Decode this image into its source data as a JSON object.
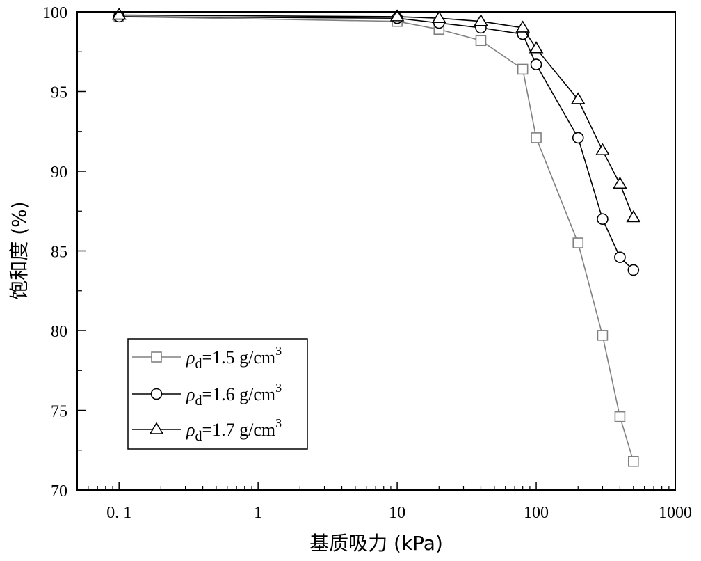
{
  "chart_data": {
    "type": "line",
    "xlabel": "基质吸力 (kPa)",
    "ylabel": "饱和度 (%)",
    "xscale": "log",
    "xlim": [
      0.05,
      1000
    ],
    "ylim": [
      70,
      100
    ],
    "x_ticks": [
      0.1,
      1,
      10,
      100,
      1000
    ],
    "x_tick_labels": [
      "0. 1",
      "1",
      "10",
      "100",
      "1000"
    ],
    "y_ticks": [
      70,
      75,
      80,
      85,
      90,
      95,
      100
    ],
    "y_tick_labels": [
      "70",
      "75",
      "80",
      "85",
      "90",
      "95",
      "100"
    ],
    "grid": false,
    "legend_position": "bottom-left",
    "series": [
      {
        "legend": {
          "symbol": "ρ",
          "sub": "d",
          "text": "=1.5 g/cm",
          "sup": "3"
        },
        "marker": "square",
        "color": "#808080",
        "x": [
          0.1,
          10,
          20,
          40,
          80,
          100,
          200,
          300,
          400,
          500
        ],
        "y": [
          99.7,
          99.4,
          98.9,
          98.2,
          96.4,
          92.1,
          85.5,
          79.7,
          74.6,
          71.8
        ]
      },
      {
        "legend": {
          "symbol": "ρ",
          "sub": "d",
          "text": "=1.6 g/cm",
          "sup": "3"
        },
        "marker": "circle",
        "color": "#000000",
        "x": [
          0.1,
          10,
          20,
          40,
          80,
          100,
          200,
          300,
          400,
          500
        ],
        "y": [
          99.7,
          99.6,
          99.3,
          99.0,
          98.6,
          96.7,
          92.1,
          87.0,
          84.6,
          83.8
        ]
      },
      {
        "legend": {
          "symbol": "ρ",
          "sub": "d",
          "text": "=1.7 g/cm",
          "sup": "3"
        },
        "marker": "triangle",
        "color": "#000000",
        "x": [
          0.1,
          10,
          20,
          40,
          80,
          100,
          200,
          300,
          400,
          500
        ],
        "y": [
          99.8,
          99.7,
          99.6,
          99.4,
          99.0,
          97.7,
          94.5,
          91.3,
          89.2,
          87.1
        ]
      }
    ]
  }
}
